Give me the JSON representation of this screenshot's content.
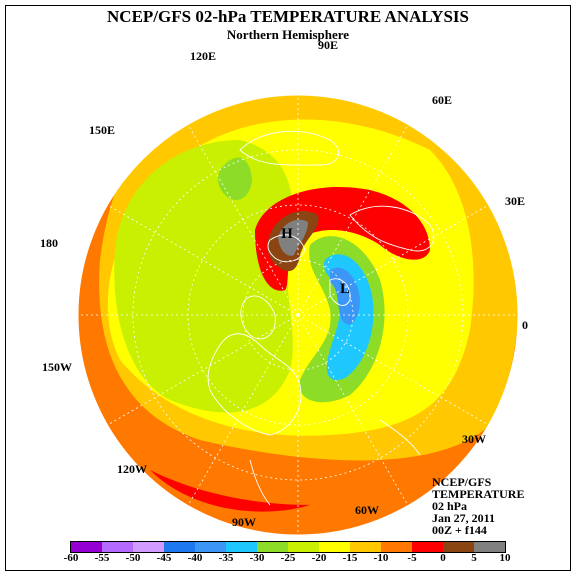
{
  "title": "NCEP/GFS 02-hPa TEMPERATURE ANALYSIS",
  "subtitle": "Northern Hemisphere",
  "longitude_labels": {
    "e90": "90E",
    "e120": "120E",
    "e60": "60E",
    "e150": "150E",
    "e30": "30E",
    "l180": "180",
    "l0": "0",
    "w150": "150W",
    "w30": "30W",
    "w120": "120W",
    "w60": "60W",
    "w90": "90W"
  },
  "markers": {
    "high": "H",
    "low": "L"
  },
  "info": {
    "line1": "NCEP/GFS",
    "line2": "TEMPERATURE",
    "line3": "02 hPa",
    "line4": "Jan 27, 2011",
    "line5": "00Z + f144"
  },
  "legend": {
    "ticks": [
      "-60",
      "-55",
      "-50",
      "-45",
      "-40",
      "-35",
      "-30",
      "-25",
      "-20",
      "-15",
      "-10",
      "-5",
      "0",
      "5",
      "10"
    ],
    "colors": [
      "#9400d3",
      "#b469ff",
      "#d29bff",
      "#1e78f0",
      "#3c96f5",
      "#1ec8ff",
      "#8cdc28",
      "#c8f000",
      "#ffff00",
      "#ffc800",
      "#ff7800",
      "#ff0000",
      "#8b4513",
      "#808080"
    ]
  },
  "colors": {
    "coast": "#ffffff",
    "grid": "#ffffff"
  }
}
